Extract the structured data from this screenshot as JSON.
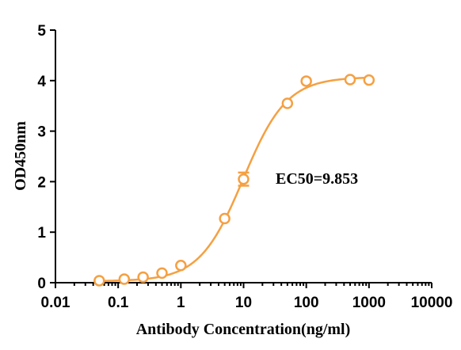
{
  "chart_data": {
    "type": "scatter",
    "xlabel": "Antibody Concentration(ng/ml)",
    "ylabel": "OD450nm",
    "x_scale": "log",
    "xlim": [
      0.01,
      10000
    ],
    "ylim": [
      0,
      5
    ],
    "x_tick_labels": [
      "0.01",
      "0.1",
      "1",
      "10",
      "100",
      "1000",
      "10000"
    ],
    "x_tick_values": [
      0.01,
      0.1,
      1,
      10,
      100,
      1000,
      10000
    ],
    "y_tick_labels": [
      "0",
      "1",
      "2",
      "3",
      "4",
      "5"
    ],
    "y_tick_values": [
      0,
      1,
      2,
      3,
      4,
      5
    ],
    "grid": false,
    "series": [
      {
        "x": [
          0.05,
          0.125,
          0.25,
          0.5,
          1,
          5,
          10,
          50,
          100,
          500,
          1000
        ],
        "y": [
          0.04,
          0.07,
          0.11,
          0.19,
          0.34,
          1.27,
          2.05,
          3.55,
          3.99,
          4.02,
          4.01
        ],
        "error": [
          0,
          0,
          0,
          0,
          0,
          0,
          0.13,
          0,
          0,
          0,
          0
        ]
      }
    ],
    "fit": {
      "model": "4PL",
      "bottom": 0.03,
      "top": 4.07,
      "ec50": 9.853,
      "hill": 1.25
    },
    "annotation": "EC50=9.853",
    "color": "#f5a042"
  }
}
